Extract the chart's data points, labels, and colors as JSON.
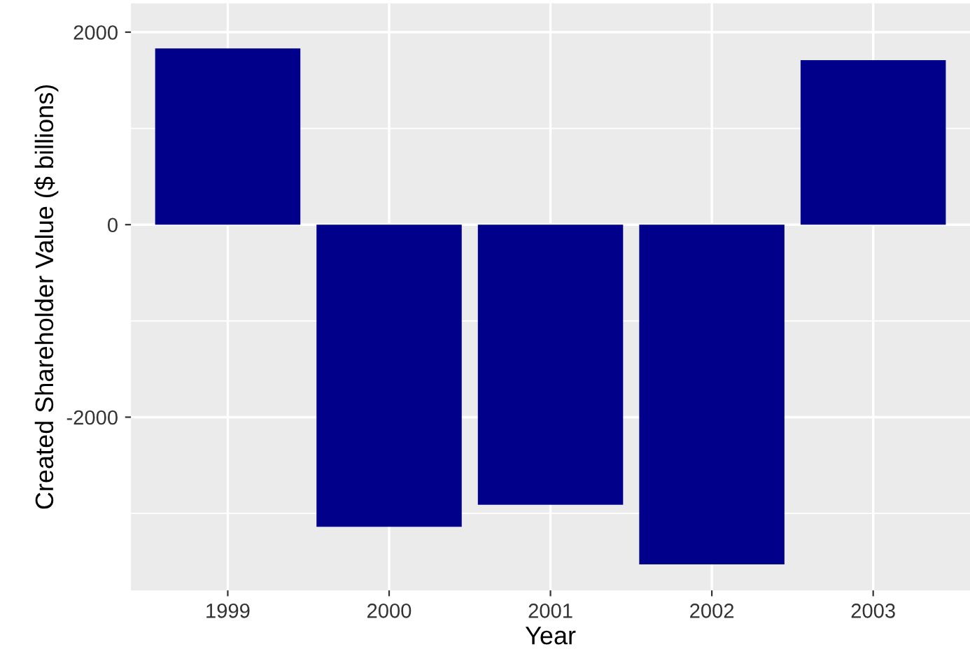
{
  "chart_data": {
    "type": "bar",
    "xlabel": "Year",
    "ylabel": "Created Shareholder Value ($ billions)",
    "categories": [
      "1999",
      "2000",
      "2001",
      "2002",
      "2003"
    ],
    "values": [
      1830,
      -3140,
      -2910,
      -3530,
      1710
    ],
    "color": "#00008b",
    "ylim": [
      -3800,
      2300
    ],
    "yticks": [
      -2000,
      0,
      2000
    ],
    "grid": true
  }
}
